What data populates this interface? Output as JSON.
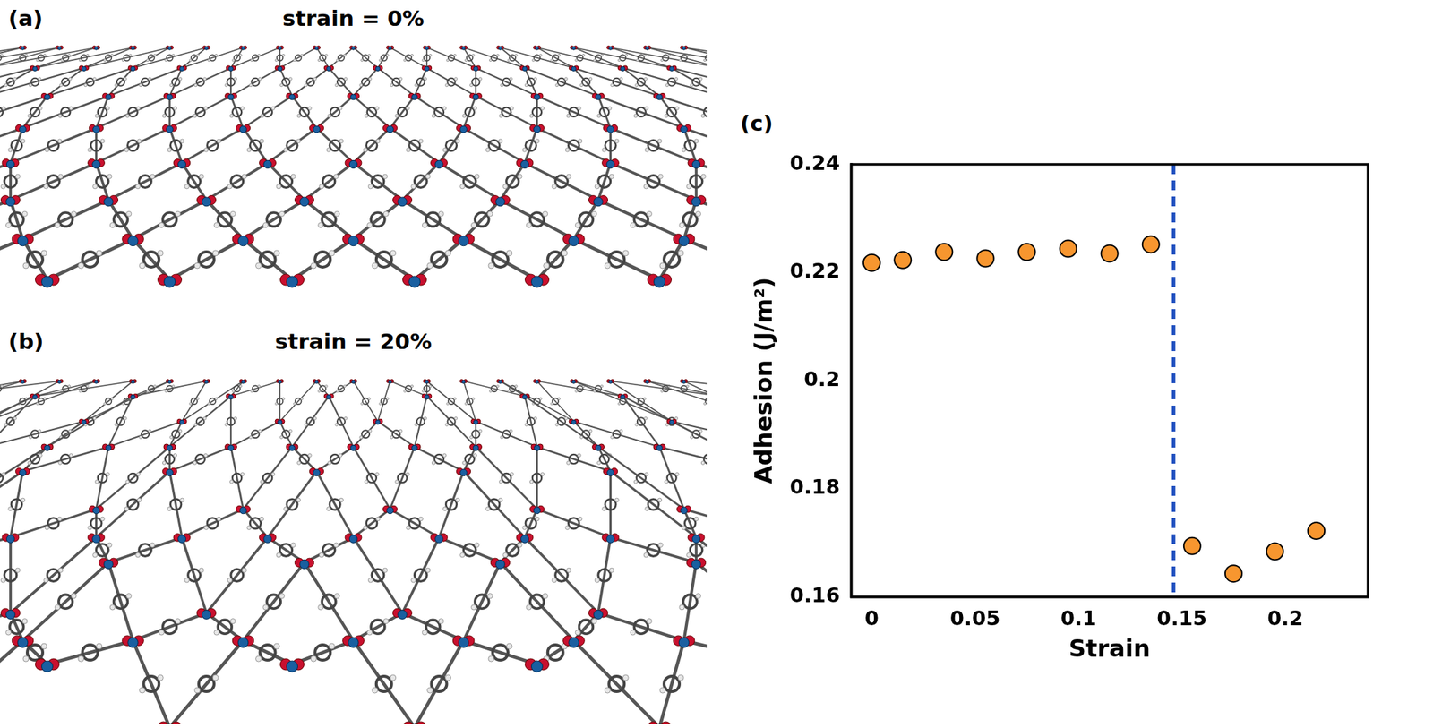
{
  "panels": [
    {
      "label": "(a)",
      "title": "strain = 0%"
    },
    {
      "label": "(b)",
      "title": "strain = 20%"
    }
  ],
  "chart_data": {
    "type": "scatter",
    "panel_label": "(c)",
    "x_label": "Strain",
    "y_label": "Adhesion (J/m²)",
    "x": [
      0,
      0.015,
      0.035,
      0.055,
      0.075,
      0.095,
      0.115,
      0.135,
      0.155,
      0.175,
      0.195,
      0.215
    ],
    "values": [
      0.2218,
      0.2223,
      0.2238,
      0.2226,
      0.2238,
      0.2244,
      0.2235,
      0.2252,
      0.1694,
      0.1643,
      0.1684,
      0.1722
    ],
    "color": "#f7962f",
    "marker": "circle",
    "xlim": [
      -0.01,
      0.24
    ],
    "xticks": [
      0,
      0.05,
      0.1,
      0.15,
      0.2
    ],
    "ylim": [
      0.16,
      0.24
    ],
    "yticks": [
      0.16,
      0.18,
      0.2,
      0.22,
      0.24
    ],
    "grid": false,
    "reference_line": {
      "x": 0.146,
      "color": "#1f4fbf",
      "line_style": "dashed"
    }
  }
}
